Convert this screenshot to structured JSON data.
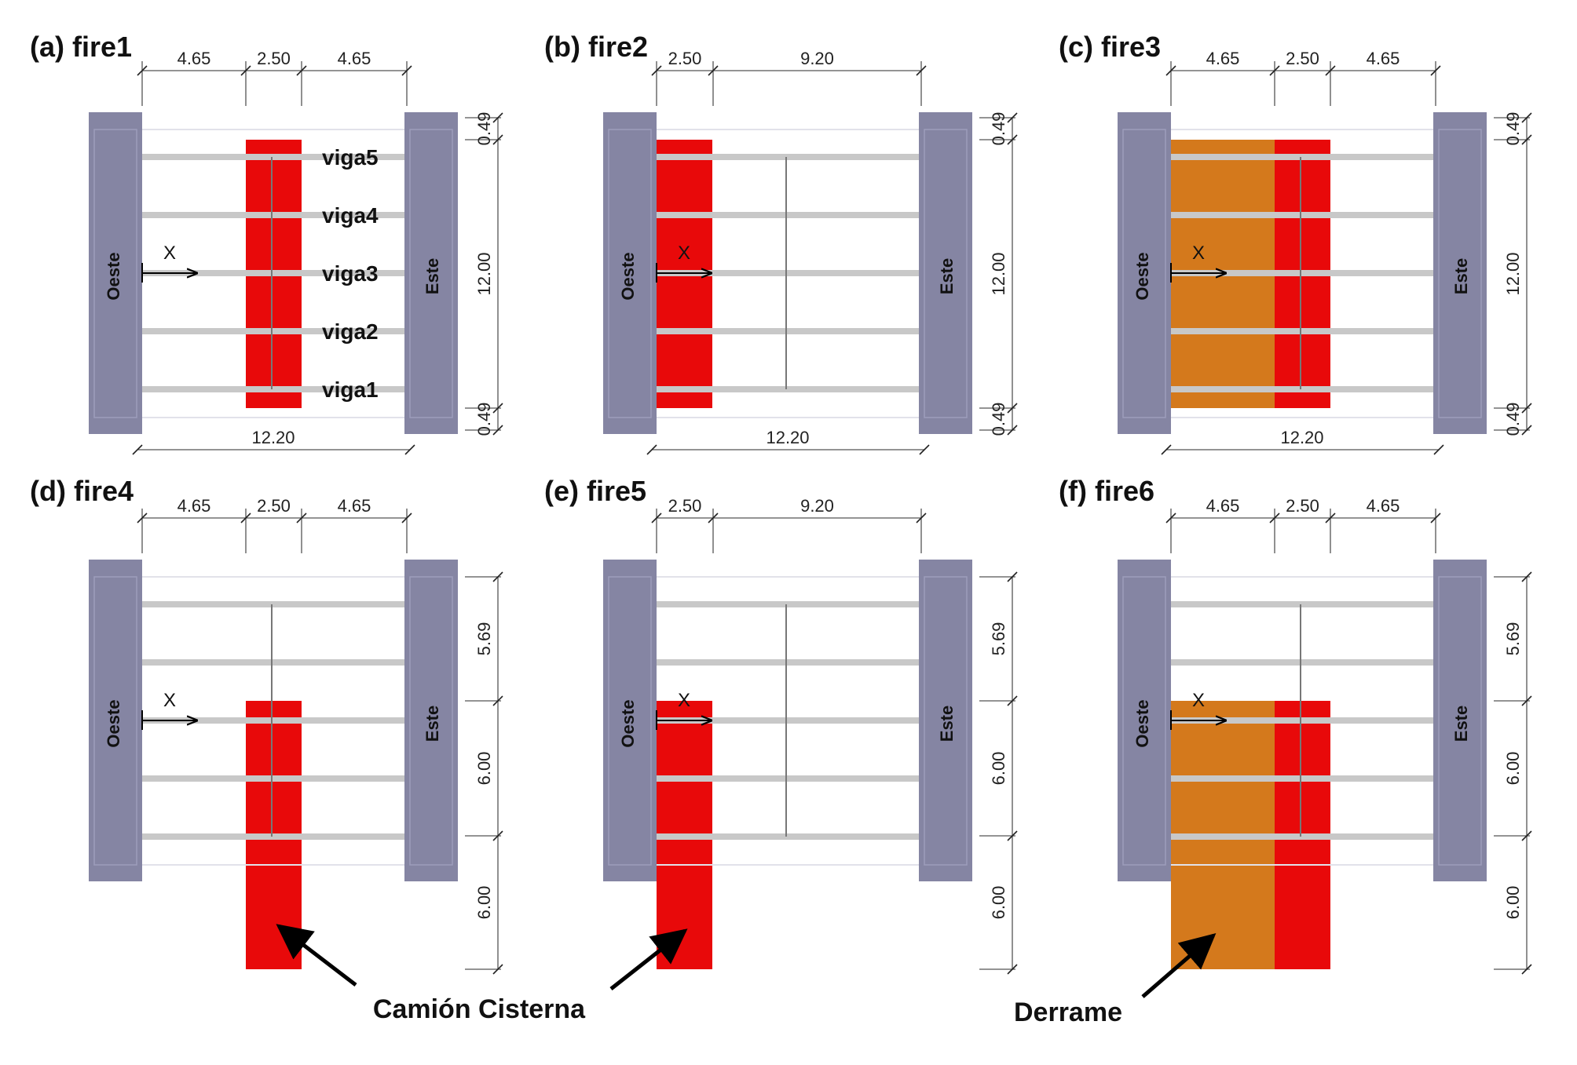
{
  "panels": [
    {
      "id": "a",
      "title": "(a) fire1",
      "top_dims": [
        "4.65",
        "2.50",
        "4.65"
      ],
      "bottom_dim": "12.20",
      "right_dims": [
        "0.49",
        "12.00",
        "0.49"
      ],
      "fire": "fire1",
      "beam_labels": [
        "viga5",
        "viga4",
        "viga3",
        "viga2",
        "viga1"
      ]
    },
    {
      "id": "b",
      "title": "(b) fire2",
      "top_dims": [
        "2.50",
        "9.20"
      ],
      "bottom_dim": "12.20",
      "right_dims": [
        "0.49",
        "12.00",
        "0.49"
      ],
      "fire": "fire2"
    },
    {
      "id": "c",
      "title": "(c) fire3",
      "top_dims": [
        "4.65",
        "2.50",
        "4.65"
      ],
      "bottom_dim": "12.20",
      "right_dims": [
        "0.49",
        "12.00",
        "0.49"
      ],
      "fire": "fire3"
    },
    {
      "id": "d",
      "title": "(d) fire4",
      "top_dims": [
        "4.65",
        "2.50",
        "4.65"
      ],
      "right_dims": [
        "5.69",
        "6.00",
        "6.00"
      ],
      "fire": "fire4"
    },
    {
      "id": "e",
      "title": "(e) fire5",
      "top_dims": [
        "2.50",
        "9.20"
      ],
      "right_dims": [
        "5.69",
        "6.00",
        "6.00"
      ],
      "fire": "fire5"
    },
    {
      "id": "f",
      "title": "(f) fire6",
      "top_dims": [
        "4.65",
        "2.50",
        "4.65"
      ],
      "right_dims": [
        "5.69",
        "6.00",
        "6.00"
      ],
      "fire": "fire6"
    }
  ],
  "labels": {
    "west": "Oeste",
    "east": "Este",
    "axis": "X"
  },
  "callouts": {
    "truck": "Camión Cisterna",
    "spill": "Derrame"
  },
  "colors": {
    "abutment": "#8585a3",
    "truck_fire": "#e8090a",
    "spill_fire": "#d4791c",
    "beam": "#c8c8c8"
  }
}
